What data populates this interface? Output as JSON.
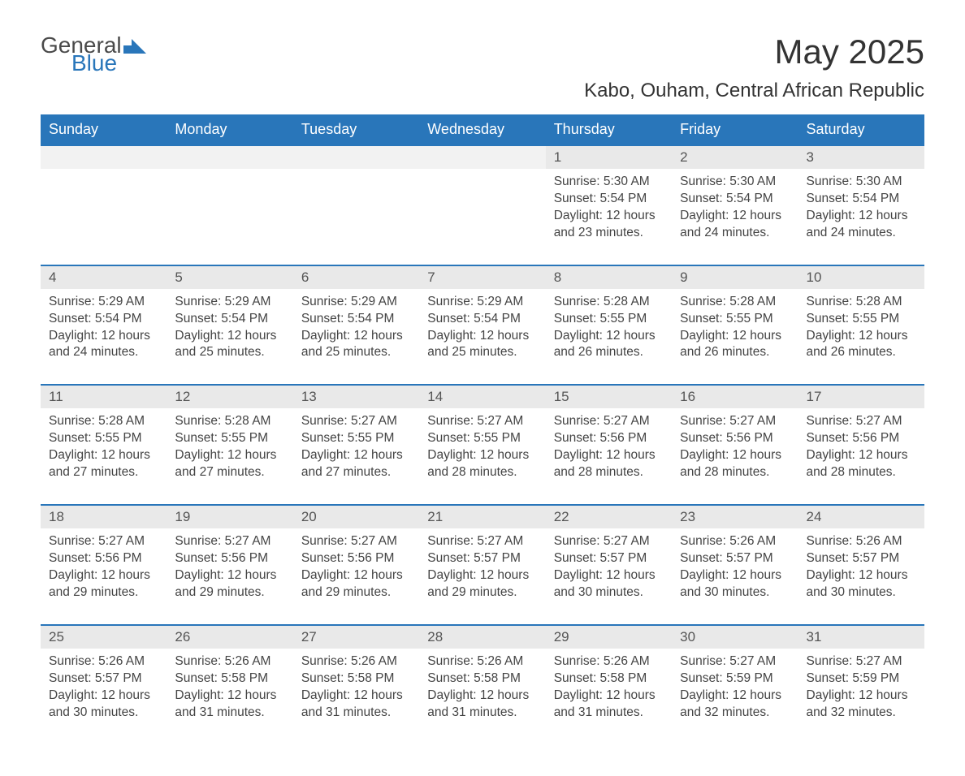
{
  "logo": {
    "text_general": "General",
    "text_blue": "Blue",
    "flag_color": "#2976ba"
  },
  "title": "May 2025",
  "subtitle": "Kabo, Ouham, Central African Republic",
  "colors": {
    "header_bg": "#2976ba",
    "header_text": "#ffffff",
    "day_num_bg": "#e9e9e9",
    "day_border": "#2976ba",
    "text": "#444444",
    "background": "#ffffff"
  },
  "day_headers": [
    "Sunday",
    "Monday",
    "Tuesday",
    "Wednesday",
    "Thursday",
    "Friday",
    "Saturday"
  ],
  "weeks": [
    [
      null,
      null,
      null,
      null,
      {
        "num": "1",
        "sunrise": "5:30 AM",
        "sunset": "5:54 PM",
        "daylight": "12 hours and 23 minutes."
      },
      {
        "num": "2",
        "sunrise": "5:30 AM",
        "sunset": "5:54 PM",
        "daylight": "12 hours and 24 minutes."
      },
      {
        "num": "3",
        "sunrise": "5:30 AM",
        "sunset": "5:54 PM",
        "daylight": "12 hours and 24 minutes."
      }
    ],
    [
      {
        "num": "4",
        "sunrise": "5:29 AM",
        "sunset": "5:54 PM",
        "daylight": "12 hours and 24 minutes."
      },
      {
        "num": "5",
        "sunrise": "5:29 AM",
        "sunset": "5:54 PM",
        "daylight": "12 hours and 25 minutes."
      },
      {
        "num": "6",
        "sunrise": "5:29 AM",
        "sunset": "5:54 PM",
        "daylight": "12 hours and 25 minutes."
      },
      {
        "num": "7",
        "sunrise": "5:29 AM",
        "sunset": "5:54 PM",
        "daylight": "12 hours and 25 minutes."
      },
      {
        "num": "8",
        "sunrise": "5:28 AM",
        "sunset": "5:55 PM",
        "daylight": "12 hours and 26 minutes."
      },
      {
        "num": "9",
        "sunrise": "5:28 AM",
        "sunset": "5:55 PM",
        "daylight": "12 hours and 26 minutes."
      },
      {
        "num": "10",
        "sunrise": "5:28 AM",
        "sunset": "5:55 PM",
        "daylight": "12 hours and 26 minutes."
      }
    ],
    [
      {
        "num": "11",
        "sunrise": "5:28 AM",
        "sunset": "5:55 PM",
        "daylight": "12 hours and 27 minutes."
      },
      {
        "num": "12",
        "sunrise": "5:28 AM",
        "sunset": "5:55 PM",
        "daylight": "12 hours and 27 minutes."
      },
      {
        "num": "13",
        "sunrise": "5:27 AM",
        "sunset": "5:55 PM",
        "daylight": "12 hours and 27 minutes."
      },
      {
        "num": "14",
        "sunrise": "5:27 AM",
        "sunset": "5:55 PM",
        "daylight": "12 hours and 28 minutes."
      },
      {
        "num": "15",
        "sunrise": "5:27 AM",
        "sunset": "5:56 PM",
        "daylight": "12 hours and 28 minutes."
      },
      {
        "num": "16",
        "sunrise": "5:27 AM",
        "sunset": "5:56 PM",
        "daylight": "12 hours and 28 minutes."
      },
      {
        "num": "17",
        "sunrise": "5:27 AM",
        "sunset": "5:56 PM",
        "daylight": "12 hours and 28 minutes."
      }
    ],
    [
      {
        "num": "18",
        "sunrise": "5:27 AM",
        "sunset": "5:56 PM",
        "daylight": "12 hours and 29 minutes."
      },
      {
        "num": "19",
        "sunrise": "5:27 AM",
        "sunset": "5:56 PM",
        "daylight": "12 hours and 29 minutes."
      },
      {
        "num": "20",
        "sunrise": "5:27 AM",
        "sunset": "5:56 PM",
        "daylight": "12 hours and 29 minutes."
      },
      {
        "num": "21",
        "sunrise": "5:27 AM",
        "sunset": "5:57 PM",
        "daylight": "12 hours and 29 minutes."
      },
      {
        "num": "22",
        "sunrise": "5:27 AM",
        "sunset": "5:57 PM",
        "daylight": "12 hours and 30 minutes."
      },
      {
        "num": "23",
        "sunrise": "5:26 AM",
        "sunset": "5:57 PM",
        "daylight": "12 hours and 30 minutes."
      },
      {
        "num": "24",
        "sunrise": "5:26 AM",
        "sunset": "5:57 PM",
        "daylight": "12 hours and 30 minutes."
      }
    ],
    [
      {
        "num": "25",
        "sunrise": "5:26 AM",
        "sunset": "5:57 PM",
        "daylight": "12 hours and 30 minutes."
      },
      {
        "num": "26",
        "sunrise": "5:26 AM",
        "sunset": "5:58 PM",
        "daylight": "12 hours and 31 minutes."
      },
      {
        "num": "27",
        "sunrise": "5:26 AM",
        "sunset": "5:58 PM",
        "daylight": "12 hours and 31 minutes."
      },
      {
        "num": "28",
        "sunrise": "5:26 AM",
        "sunset": "5:58 PM",
        "daylight": "12 hours and 31 minutes."
      },
      {
        "num": "29",
        "sunrise": "5:26 AM",
        "sunset": "5:58 PM",
        "daylight": "12 hours and 31 minutes."
      },
      {
        "num": "30",
        "sunrise": "5:27 AM",
        "sunset": "5:59 PM",
        "daylight": "12 hours and 32 minutes."
      },
      {
        "num": "31",
        "sunrise": "5:27 AM",
        "sunset": "5:59 PM",
        "daylight": "12 hours and 32 minutes."
      }
    ]
  ],
  "labels": {
    "sunrise_prefix": "Sunrise: ",
    "sunset_prefix": "Sunset: ",
    "daylight_prefix": "Daylight: "
  }
}
